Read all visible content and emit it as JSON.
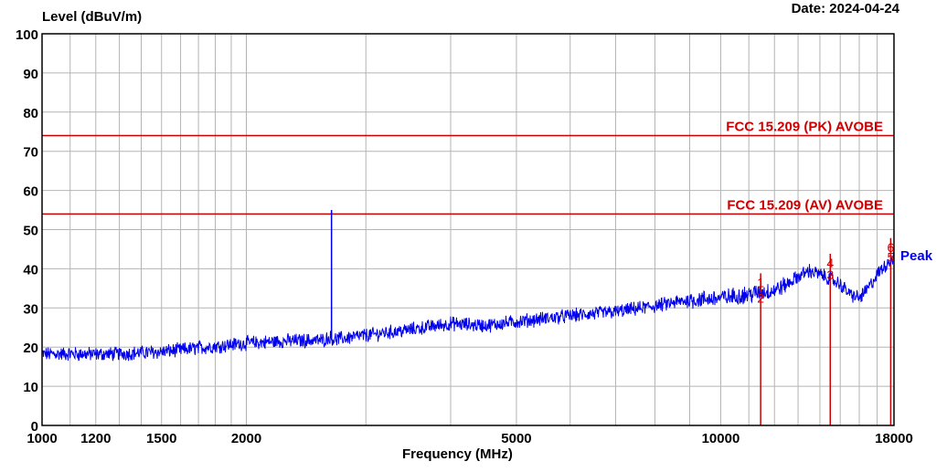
{
  "header": {
    "date_text": "Date: 2024-04-24"
  },
  "chart_data": {
    "type": "line",
    "ylabel": "Level (dBuV/m)",
    "xlabel": "Frequency (MHz)",
    "x_scale": "log",
    "xlim": [
      1000,
      18000
    ],
    "ylim": [
      0,
      100
    ],
    "y_ticks": [
      0,
      10,
      20,
      30,
      40,
      50,
      60,
      70,
      80,
      90,
      100
    ],
    "x_tick_labels": [
      {
        "value": 1000,
        "label": "1000"
      },
      {
        "value": 1200,
        "label": "1200"
      },
      {
        "value": 1500,
        "label": "1500"
      },
      {
        "value": 2000,
        "label": "2000"
      },
      {
        "value": 5000,
        "label": "5000"
      },
      {
        "value": 10000,
        "label": "10000"
      },
      {
        "value": 18000,
        "label": "18000"
      }
    ],
    "x_gridlines": [
      1000,
      1100,
      1200,
      1300,
      1400,
      1500,
      1600,
      1700,
      1800,
      1900,
      2000,
      3000,
      4000,
      5000,
      6000,
      7000,
      8000,
      9000,
      10000,
      11000,
      12000,
      13000,
      14000,
      15000,
      16000,
      17000,
      18000
    ],
    "grid": true,
    "limit_lines": [
      {
        "label": "FCC 15.209 (PK) AVOBE",
        "y": 74,
        "color": "#cc0000"
      },
      {
        "label": "FCC 15.209 (AV) AVOBE",
        "y": 54,
        "color": "#cc0000"
      }
    ],
    "series": [
      {
        "name": "Peak",
        "color": "#0000ee",
        "noise_amplitude": 1.6,
        "x": [
          1000,
          1100,
          1200,
          1300,
          1500,
          1700,
          2000,
          2300,
          2600,
          2650,
          2700,
          3000,
          3500,
          4000,
          4500,
          5000,
          6000,
          7000,
          8000,
          9000,
          10000,
          11000,
          11500,
          12000,
          12500,
          13000,
          13500,
          14000,
          14500,
          15000,
          15500,
          16000,
          16500,
          17000,
          17500,
          18000
        ],
        "y": [
          18.2,
          18.3,
          18.2,
          18.3,
          18.8,
          19.8,
          21,
          21.6,
          21.8,
          22.5,
          22,
          23,
          24.5,
          26,
          25.5,
          26.5,
          28,
          29,
          30.5,
          32,
          32.5,
          33.5,
          34,
          34.5,
          36,
          38,
          39.5,
          38.5,
          37.5,
          36,
          33.5,
          32.5,
          35,
          38.5,
          41,
          43
        ]
      },
      {
        "name": "",
        "type": "spike",
        "color": "#0000ee",
        "x": [
          2670
        ],
        "y": [
          55
        ]
      }
    ],
    "markers": [
      {
        "label": "1",
        "x": 11450,
        "y": 36.5,
        "color": "#cc0000"
      },
      {
        "label": "2",
        "x": 11450,
        "y": 32.5,
        "color": "#cc0000"
      },
      {
        "label": "3",
        "x": 14500,
        "y": 38.5,
        "color": "#cc0000"
      },
      {
        "label": "4",
        "x": 14500,
        "y": 41.5,
        "color": "#cc0000"
      },
      {
        "label": "5",
        "x": 17800,
        "y": 43,
        "color": "#cc0000"
      },
      {
        "label": "6",
        "x": 17800,
        "y": 45.5,
        "color": "#cc0000"
      }
    ],
    "legend_placement": "right"
  }
}
